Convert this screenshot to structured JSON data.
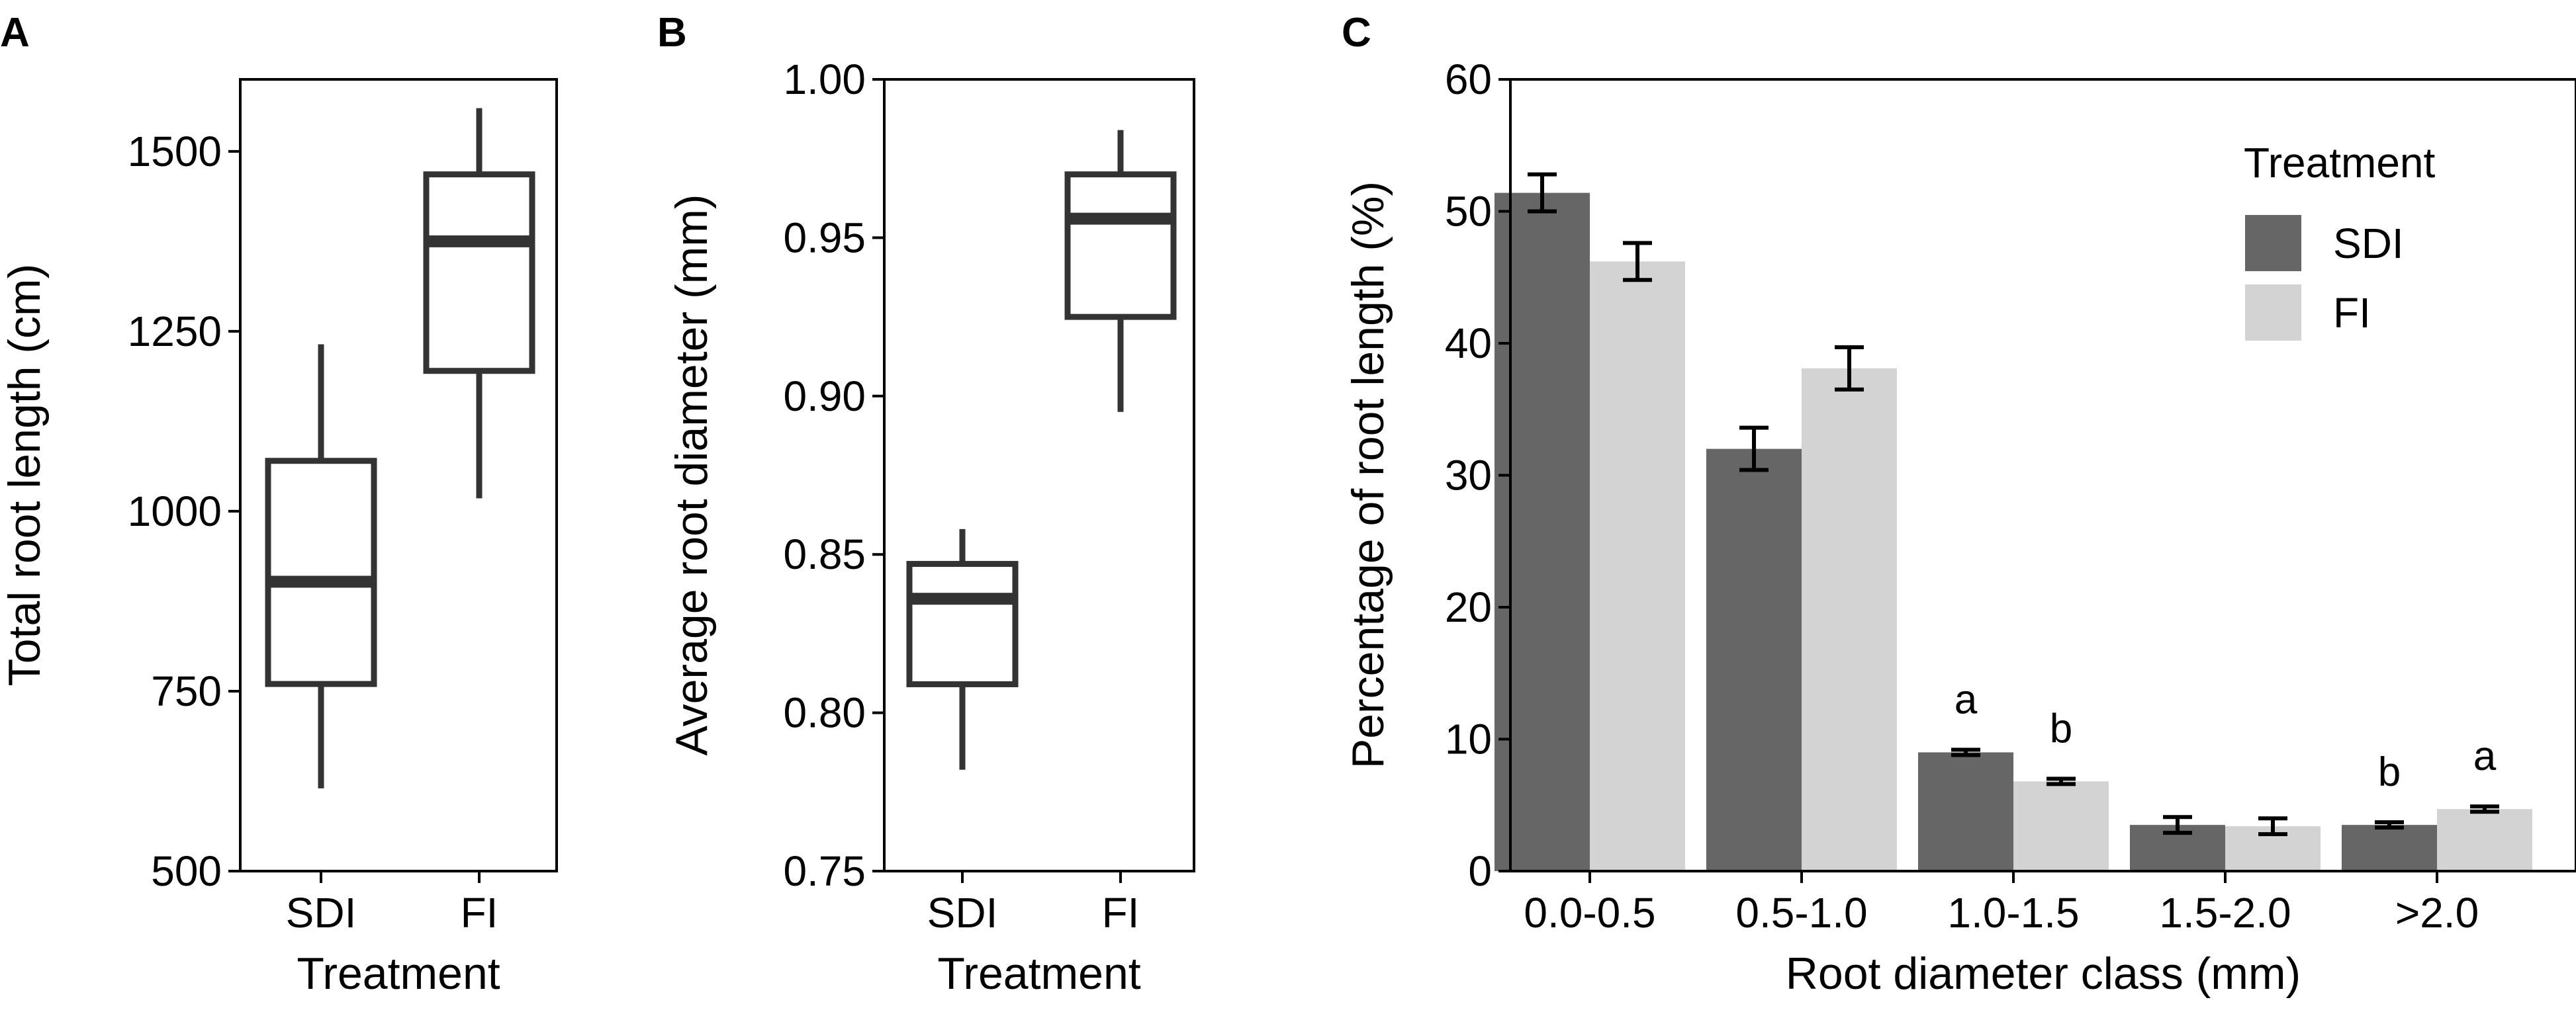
{
  "chart_data": [
    {
      "panel": "A",
      "type": "box",
      "categories": [
        "SDI",
        "FI"
      ],
      "boxes": [
        {
          "name": "SDI",
          "min": 615,
          "q1": 760,
          "median": 902,
          "q3": 1070,
          "max": 1232
        },
        {
          "name": "FI",
          "min": 1018,
          "q1": 1195,
          "median": 1375,
          "q3": 1468,
          "max": 1560
        }
      ],
      "xlabel": "Treatment",
      "ylabel": "Total root length (cm)",
      "ylim": [
        500,
        1600
      ],
      "yticks": [
        500,
        750,
        1000,
        1250,
        1500
      ],
      "ytick_labels": [
        "500",
        "750",
        "1000",
        "1250",
        "1500"
      ],
      "colors": {
        "box": "#333333"
      }
    },
    {
      "panel": "B",
      "type": "box",
      "categories": [
        "SDI",
        "FI"
      ],
      "boxes": [
        {
          "name": "SDI",
          "min": 0.782,
          "q1": 0.809,
          "median": 0.836,
          "q3": 0.847,
          "max": 0.858
        },
        {
          "name": "FI",
          "min": 0.895,
          "q1": 0.925,
          "median": 0.956,
          "q3": 0.97,
          "max": 0.984
        }
      ],
      "xlabel": "Treatment",
      "ylabel": "Average root diameter (mm)",
      "ylim": [
        0.75,
        1.0
      ],
      "yticks": [
        0.75,
        0.8,
        0.85,
        0.9,
        0.95,
        1.0
      ],
      "ytick_labels": [
        "0.75",
        "0.80",
        "0.85",
        "0.90",
        "0.95",
        "1.00"
      ],
      "colors": {
        "box": "#333333"
      }
    },
    {
      "panel": "C",
      "type": "bar",
      "categories": [
        "0.0-0.5",
        "0.5-1.0",
        "1.0-1.5",
        "1.5-2.0",
        ">2.0"
      ],
      "series": [
        {
          "name": "SDI",
          "values": [
            51.4,
            32.0,
            9.0,
            3.5,
            3.5
          ],
          "errors": [
            1.4,
            1.6,
            0.2,
            0.6,
            0.2
          ],
          "labels": [
            "",
            "",
            "a",
            "",
            "b"
          ],
          "color": "#666666"
        },
        {
          "name": "FI",
          "values": [
            46.2,
            38.1,
            6.8,
            3.4,
            4.7
          ],
          "errors": [
            1.4,
            1.6,
            0.2,
            0.6,
            0.2
          ],
          "labels": [
            "",
            "",
            "b",
            "",
            "a"
          ],
          "color": "#d3d3d3"
        }
      ],
      "xlabel": "Root diameter class (mm)",
      "ylabel": "Percentage of root length (%)",
      "ylim": [
        0,
        60
      ],
      "yticks": [
        0,
        10,
        20,
        30,
        40,
        50,
        60
      ],
      "ytick_labels": [
        "0",
        "10",
        "20",
        "30",
        "40",
        "50",
        "60"
      ],
      "legend": {
        "title": "Treatment",
        "position": "top-right"
      }
    }
  ]
}
